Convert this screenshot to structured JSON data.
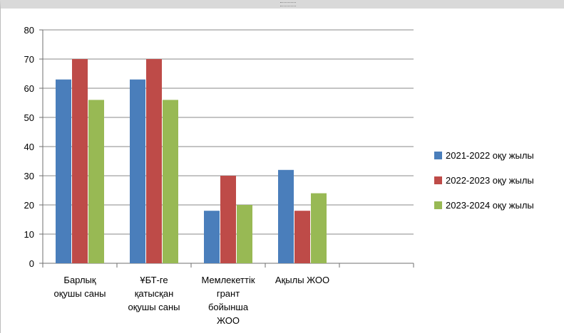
{
  "chart_data": {
    "type": "bar",
    "categories": [
      [
        "Барлық",
        "оқушы саны"
      ],
      [
        "ҰБТ-ге",
        "қатысқан",
        "оқушы саны"
      ],
      [
        "Мемлекеттік",
        "грант",
        "бойынша",
        "ЖОО"
      ],
      [
        "Ақылы ЖОО"
      ],
      [
        ""
      ]
    ],
    "series": [
      {
        "name": "2021-2022 оқу жылы",
        "color": "#4a7ebb",
        "values": [
          63,
          63,
          18,
          32,
          null
        ]
      },
      {
        "name": "2022-2023 оқу жылы",
        "color": "#be4b48",
        "values": [
          70,
          70,
          30,
          18,
          null
        ]
      },
      {
        "name": "2023-2024 оқу жылы",
        "color": "#98b954",
        "values": [
          56,
          56,
          20,
          24,
          null
        ]
      }
    ],
    "ylim": [
      0,
      80
    ],
    "yticks": [
      0,
      10,
      20,
      30,
      40,
      50,
      60,
      70,
      80
    ],
    "grid": true,
    "legend": "right"
  }
}
